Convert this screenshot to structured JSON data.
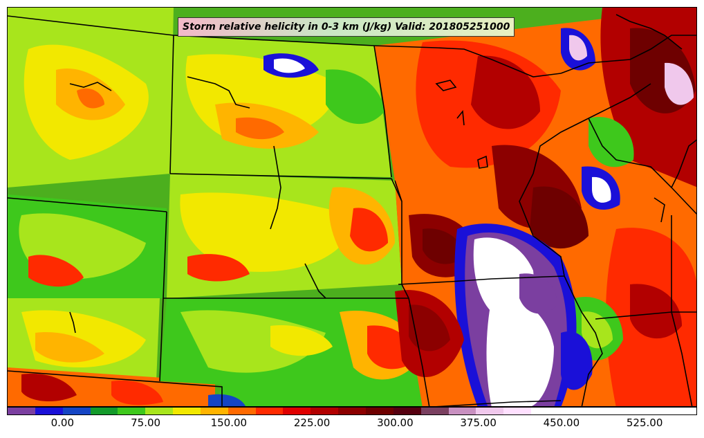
{
  "title": "Storm relative helicity in 0-3 km (J/kg) Valid: 201805251000",
  "colorbar": {
    "colors": [
      "#7b3fa0",
      "#1a10d8",
      "#1545c4",
      "#139a2a",
      "#3ec81c",
      "#a8e51c",
      "#f2e800",
      "#ffb400",
      "#ff6a00",
      "#ff2a00",
      "#e00000",
      "#b20000",
      "#8c0000",
      "#6e0000",
      "#560010",
      "#7a4060",
      "#c890c0",
      "#f0c8ec",
      "#ffe0ff",
      "#ffffff",
      "#ffffff",
      "#ffffff",
      "#ffffff",
      "#ffffff",
      "#ffffff"
    ],
    "ticks": [
      {
        "label": "0.00",
        "frac": 0.0805
      },
      {
        "label": "75.00",
        "frac": 0.201
      },
      {
        "label": "150.00",
        "frac": 0.3215
      },
      {
        "label": "225.00",
        "frac": 0.442
      },
      {
        "label": "300.00",
        "frac": 0.5625
      },
      {
        "label": "375.00",
        "frac": 0.683
      },
      {
        "label": "450.00",
        "frac": 0.8035
      },
      {
        "label": "525.00",
        "frac": 0.924
      }
    ]
  },
  "map": {
    "fill_colors": {
      "low": "#3ec81c",
      "mid": "#a8e51c",
      "yellow": "#f2e800",
      "orange": "#ffb400",
      "red": "#ff2a00",
      "darkred": "#b20000",
      "maroon": "#6e0000",
      "purple": "#7b3fa0",
      "blue": "#1a10d8",
      "white": "#ffffff",
      "pink": "#f0c8ec"
    }
  }
}
